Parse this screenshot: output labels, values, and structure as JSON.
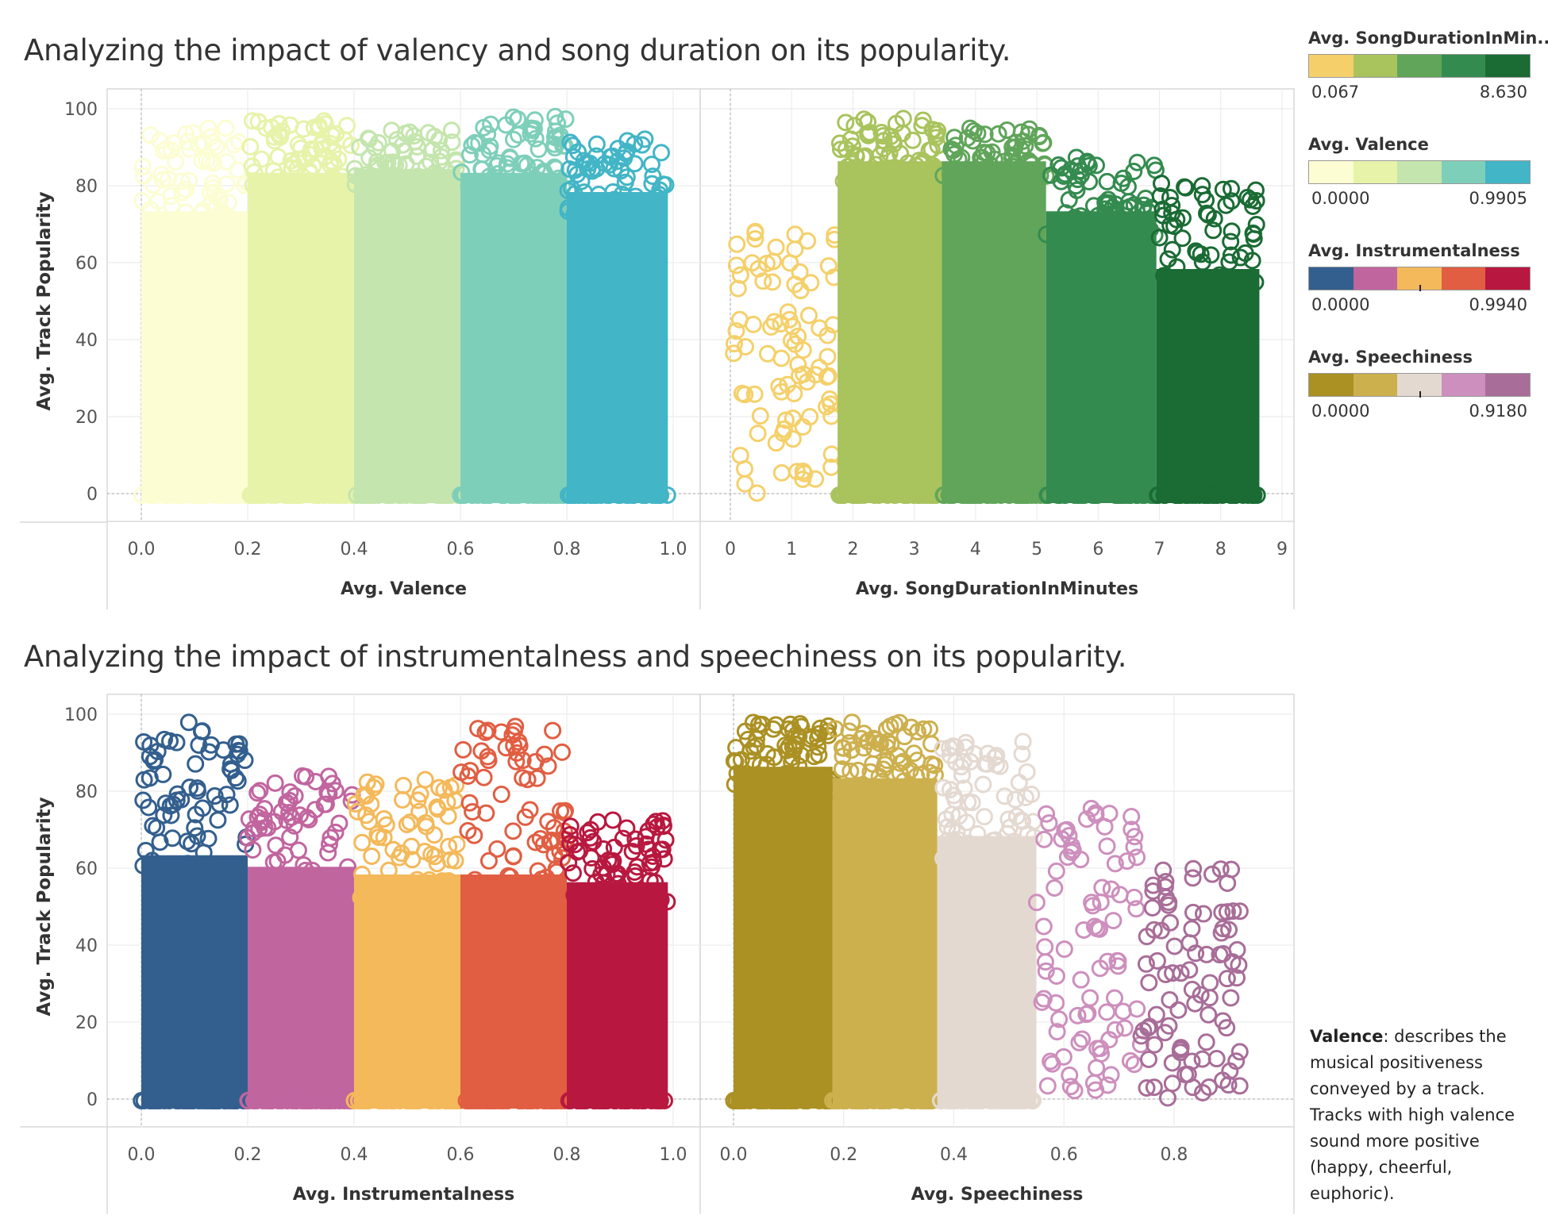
{
  "titles": {
    "top": "Analyzing the impact of valency and song duration on its popularity.",
    "bottom": "Analyzing the impact of instrumentalness and speechiness  on its popularity."
  },
  "legends": [
    {
      "title": "Avg. SongDurationInMin..",
      "min": "0.067",
      "max": "8.630",
      "colors": [
        "#f5d06a",
        "#a9c35d",
        "#60a55a",
        "#348b4f",
        "#1a6b34"
      ],
      "center_tick": false
    },
    {
      "title": "Avg. Valence",
      "min": "0.0000",
      "max": "0.9905",
      "colors": [
        "#fcfdd2",
        "#e6f3a9",
        "#c4e5ad",
        "#7ecfba",
        "#42b5c6"
      ],
      "center_tick": false
    },
    {
      "title": "Avg. Instrumentalness",
      "min": "0.0000",
      "max": "0.9940",
      "colors": [
        "#335f8e",
        "#c1659f",
        "#f4b95a",
        "#e15e42",
        "#b8183f"
      ],
      "center_tick": true
    },
    {
      "title": "Avg. Speechiness",
      "min": "0.0000",
      "max": "0.9180",
      "colors": [
        "#ab9123",
        "#cdb04e",
        "#e4d9d1",
        "#cd8fbd",
        "#a86d98"
      ],
      "center_tick": true
    }
  ],
  "note": {
    "bold": "Valence",
    "lines": [
      ":  describes the",
      "musical positiveness",
      "conveyed by a track.",
      "Tracks with high valence",
      "sound more positive",
      "(happy, cheerful,",
      "euphoric)."
    ]
  },
  "chart_data": [
    {
      "type": "scatter",
      "xlabel": "Avg. Valence",
      "ylabel": "Avg. Track Popularity",
      "xlim": [
        0.0,
        1.0
      ],
      "ylim": [
        0,
        100
      ],
      "xticks": [
        "0.0",
        "0.2",
        "0.4",
        "0.6",
        "0.8",
        "1.0"
      ],
      "yticks": [
        "0",
        "20",
        "40",
        "60",
        "80",
        "100"
      ],
      "color_by": "Avg. Valence",
      "bands": [
        {
          "x_range": [
            0.0,
            0.2
          ],
          "y_top": [
            75,
            95
          ],
          "color": "#fcfdd2"
        },
        {
          "x_range": [
            0.2,
            0.4
          ],
          "y_top": [
            85,
            97
          ],
          "color": "#e6f3a9"
        },
        {
          "x_range": [
            0.4,
            0.6
          ],
          "y_top": [
            86,
            95
          ],
          "color": "#c4e5ad"
        },
        {
          "x_range": [
            0.6,
            0.8
          ],
          "y_top": [
            85,
            98
          ],
          "color": "#7ecfba"
        },
        {
          "x_range": [
            0.8,
            0.99
          ],
          "y_top": [
            80,
            93
          ],
          "color": "#42b5c6"
        }
      ]
    },
    {
      "type": "scatter",
      "xlabel": "Avg. SongDurationInMinutes",
      "ylabel": "Avg. Track Popularity",
      "xlim": [
        0,
        9
      ],
      "ylim": [
        0,
        100
      ],
      "xticks": [
        "0",
        "1",
        "2",
        "3",
        "4",
        "5",
        "6",
        "7",
        "8",
        "9"
      ],
      "yticks": [
        "0",
        "20",
        "40",
        "60",
        "80",
        "100"
      ],
      "color_by": "Avg. SongDurationInMinutes",
      "bands": [
        {
          "x_range": [
            0.05,
            1.75
          ],
          "y_top": [
            20,
            70
          ],
          "color": "#f5d06a"
        },
        {
          "x_range": [
            1.75,
            3.45
          ],
          "y_top": [
            88,
            98
          ],
          "color": "#a9c35d"
        },
        {
          "x_range": [
            3.45,
            5.15
          ],
          "y_top": [
            88,
            95
          ],
          "color": "#60a55a"
        },
        {
          "x_range": [
            5.15,
            6.95
          ],
          "y_top": [
            75,
            88
          ],
          "color": "#348b4f"
        },
        {
          "x_range": [
            6.95,
            8.63
          ],
          "y_top": [
            60,
            81
          ],
          "color": "#1a6b34"
        }
      ]
    },
    {
      "type": "scatter",
      "xlabel": "Avg. Instrumentalness",
      "ylabel": "Avg. Track Popularity",
      "xlim": [
        0.0,
        1.0
      ],
      "ylim": [
        0,
        100
      ],
      "xticks": [
        "0.0",
        "0.2",
        "0.4",
        "0.6",
        "0.8",
        "1.0"
      ],
      "yticks": [
        "0",
        "20",
        "40",
        "60",
        "80",
        "100"
      ],
      "color_by": "Avg. Instrumentalness",
      "bands": [
        {
          "x_range": [
            0.0,
            0.2
          ],
          "y_top": [
            65,
            98
          ],
          "color": "#335f8e"
        },
        {
          "x_range": [
            0.2,
            0.4
          ],
          "y_top": [
            62,
            84
          ],
          "color": "#c1659f"
        },
        {
          "x_range": [
            0.4,
            0.6
          ],
          "y_top": [
            60,
            83
          ],
          "color": "#f4b95a"
        },
        {
          "x_range": [
            0.6,
            0.8
          ],
          "y_top": [
            60,
            97
          ],
          "color": "#e15e42"
        },
        {
          "x_range": [
            0.8,
            0.99
          ],
          "y_top": [
            58,
            73
          ],
          "color": "#b8183f"
        }
      ]
    },
    {
      "type": "scatter",
      "xlabel": "Avg. Speechiness",
      "ylabel": "Avg. Track Popularity",
      "xlim": [
        0.0,
        0.95
      ],
      "ylim": [
        0,
        100
      ],
      "xticks": [
        "0.0",
        "0.2",
        "0.4",
        "0.6",
        "0.8"
      ],
      "yticks": [
        "0",
        "20",
        "40",
        "60",
        "80",
        "100"
      ],
      "color_by": "Avg. Speechiness",
      "bands": [
        {
          "x_range": [
            0.0,
            0.18
          ],
          "y_top": [
            88,
            98
          ],
          "color": "#ab9123"
        },
        {
          "x_range": [
            0.18,
            0.37
          ],
          "y_top": [
            85,
            98
          ],
          "color": "#cdb04e"
        },
        {
          "x_range": [
            0.37,
            0.55
          ],
          "y_top": [
            70,
            93
          ],
          "color": "#e4d9d1"
        },
        {
          "x_range": [
            0.55,
            0.74
          ],
          "y_top": [
            40,
            76
          ],
          "color": "#cd8fbd"
        },
        {
          "x_range": [
            0.74,
            0.92
          ],
          "y_top": [
            20,
            60
          ],
          "color": "#a86d98"
        }
      ]
    }
  ]
}
